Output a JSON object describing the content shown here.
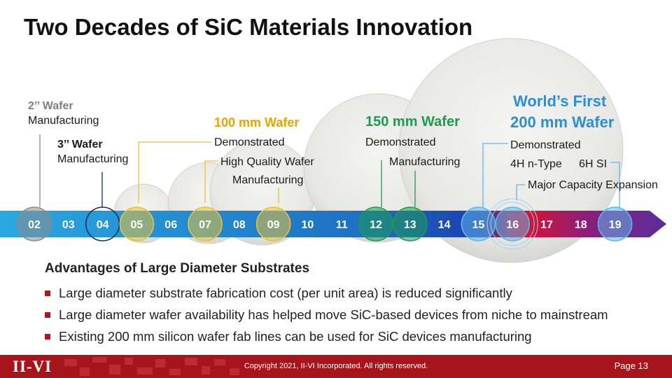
{
  "title": "Two Decades of SiC Materials Innovation",
  "timeline": {
    "years": [
      "02",
      "03",
      "04",
      "05",
      "06",
      "07",
      "08",
      "09",
      "10",
      "11",
      "12",
      "13",
      "14",
      "15",
      "16",
      "17",
      "18",
      "19"
    ],
    "circled": {
      "02": "#8c8c8c",
      "04": "#1a2a5a",
      "05": "#e8c23a",
      "07": "#e8c23a",
      "09": "#e8c23a",
      "12": "#1f9a53",
      "13": "#1f9a53",
      "15": "#5fb6ea",
      "16": "#5fb6ea",
      "19": "#5fb6ea"
    }
  },
  "labels": {
    "wafer2_title": "2’’ Wafer",
    "wafer2_sub": "Manufacturing",
    "wafer3_title": "3’’ Wafer",
    "wafer3_sub": "Manufacturing",
    "wafer100_title": "100 mm Wafer",
    "wafer100_demo": "Demonstrated",
    "wafer100_hq": "High Quality Wafer",
    "wafer100_mfg": "Manufacturing",
    "wafer150_title": "150 mm Wafer",
    "wafer150_demo": "Demonstrated",
    "wafer150_mfg": "Manufacturing",
    "wafer200_title_line1": "World’s First",
    "wafer200_title_line2": "200 mm Wafer",
    "wafer200_demo": "Demonstrated",
    "wafer200_4h": "4H n-Type",
    "wafer200_6h": "6H SI",
    "wafer200_expansion": "Major Capacity Expansion"
  },
  "advantages": {
    "title": "Advantages of Large Diameter Substrates",
    "items": [
      "Large diameter substrate fabrication cost (per unit area) is reduced significantly",
      "Large diameter wafer availability has helped move SiC-based devices from niche to mainstream",
      "Existing 200 mm silicon wafer fab lines can be used for SiC devices manufacturing"
    ]
  },
  "footer": {
    "logo": "II-VI",
    "copyright": "Copyright 2021, II-VI Incorporated. All rights reserved.",
    "page": "Page 13"
  },
  "colors": {
    "accent_red": "#a8141c",
    "gold": "#e8a500",
    "green": "#1f9a53",
    "blue": "#2c8fd6"
  }
}
